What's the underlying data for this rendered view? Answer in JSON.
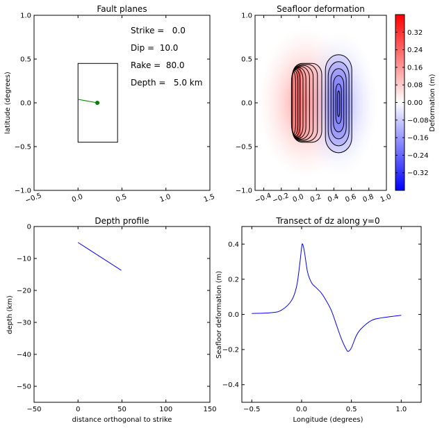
{
  "chart_data": [
    {
      "type": "line",
      "title": "Fault planes",
      "xlabel": "",
      "ylabel": "latitude (degrees)",
      "xlim": [
        -0.5,
        1.5
      ],
      "ylim": [
        -1.0,
        1.0
      ],
      "xticks": [
        -0.5,
        0.0,
        0.5,
        1.0,
        1.5
      ],
      "xtick_labels": [
        "−0.5",
        "0.0",
        "0.5",
        "1.0",
        "1.5"
      ],
      "yticks": [
        -1.0,
        -0.5,
        0.0,
        0.5,
        1.0
      ],
      "ytick_labels": [
        "−1.0",
        "−0.5",
        "0.0",
        "0.5",
        "1.0"
      ],
      "fault_rectangle": {
        "x": [
          0.0,
          0.45
        ],
        "y": [
          -0.45,
          0.45
        ]
      },
      "slip_line": {
        "x": [
          0.0,
          0.22
        ],
        "y": [
          0.04,
          0.0
        ]
      },
      "centroid": {
        "x": 0.22,
        "y": 0.0
      },
      "annotations": [
        "Strike =   0.0",
        "Dip =  10.0",
        "Rake =  80.0",
        "Depth =   5.0 km"
      ],
      "line_color": "#008000"
    },
    {
      "type": "heatmap",
      "title": "Seafloor deformation",
      "xlim": [
        -0.5,
        1.0
      ],
      "ylim": [
        -1.0,
        1.0
      ],
      "xticks": [
        -0.4,
        -0.2,
        0.0,
        0.2,
        0.4,
        0.6,
        0.8,
        1.0
      ],
      "xtick_labels": [
        "−0.4",
        "−0.2",
        "0.0",
        "0.2",
        "0.4",
        "0.6",
        "0.8",
        "1.0"
      ],
      "yticks": [
        -1.0,
        -0.5,
        0.0,
        0.5,
        1.0
      ],
      "ytick_labels": [
        "−1.0",
        "−0.5",
        "0.0",
        "0.5",
        "1.0"
      ],
      "uplift": {
        "peak": 0.4,
        "x_center": 0.0,
        "y_extent": [
          -0.45,
          0.45
        ]
      },
      "subsidence": {
        "peak": -0.21,
        "x_center": 0.47,
        "y_extent": [
          -0.57,
          0.55
        ]
      },
      "colorbar": {
        "label": "Deformation (m)",
        "range": [
          -0.4,
          0.4
        ],
        "ticks": [
          0.32,
          0.24,
          0.16,
          0.08,
          0.0,
          -0.08,
          -0.16,
          -0.24,
          -0.32
        ],
        "tick_labels": [
          "0.32",
          "0.24",
          "0.16",
          "0.08",
          "0.00",
          "−0.08",
          "−0.16",
          "−0.24",
          "−0.32"
        ],
        "colors": [
          "#0000ff",
          "#ffffff",
          "#ff0000"
        ]
      }
    },
    {
      "type": "line",
      "title": "Depth profile",
      "xlabel": "distance orthogonal to strike",
      "ylabel": "depth (km)",
      "xlim": [
        -50,
        150
      ],
      "ylim": [
        -55,
        0
      ],
      "xticks": [
        -50,
        0,
        50,
        100,
        150
      ],
      "xtick_labels": [
        "−50",
        "0",
        "50",
        "100",
        "150"
      ],
      "yticks": [
        0,
        -10,
        -20,
        -30,
        -40,
        -50
      ],
      "ytick_labels": [
        "0",
        "−10",
        "−20",
        "−30",
        "−40",
        "−50"
      ],
      "series": [
        {
          "x": [
            0,
            49.2
          ],
          "y": [
            -5.0,
            -13.7
          ]
        }
      ],
      "line_color": "#0000ff"
    },
    {
      "type": "line",
      "title": "Transect of dz along y=0",
      "xlabel": "Longitude (degrees)",
      "ylabel": "Seafloor deformation (m)",
      "xlim": [
        -0.6,
        1.2
      ],
      "ylim": [
        -0.5,
        0.5
      ],
      "xticks": [
        -0.5,
        0.0,
        0.5,
        1.0
      ],
      "xtick_labels": [
        "−0.5",
        "0.0",
        "0.5",
        "1.0"
      ],
      "yticks": [
        0.4,
        0.2,
        0.0,
        -0.2,
        -0.4
      ],
      "ytick_labels": [
        "0.4",
        "0.2",
        "0.0",
        "−0.2",
        "−0.4"
      ],
      "series": [
        {
          "x": [
            -0.5,
            -0.3,
            -0.2,
            -0.1,
            -0.05,
            -0.02,
            0.0,
            0.01,
            0.03,
            0.06,
            0.1,
            0.15,
            0.2,
            0.25,
            0.3,
            0.35,
            0.4,
            0.45,
            0.47,
            0.5,
            0.55,
            0.6,
            0.7,
            0.8,
            1.0
          ],
          "y": [
            0.005,
            0.01,
            0.025,
            0.08,
            0.16,
            0.28,
            0.38,
            0.4,
            0.35,
            0.24,
            0.18,
            0.15,
            0.12,
            0.075,
            0.02,
            -0.06,
            -0.14,
            -0.2,
            -0.21,
            -0.19,
            -0.12,
            -0.08,
            -0.035,
            -0.02,
            -0.005
          ]
        }
      ],
      "line_color": "#0000ff"
    }
  ]
}
